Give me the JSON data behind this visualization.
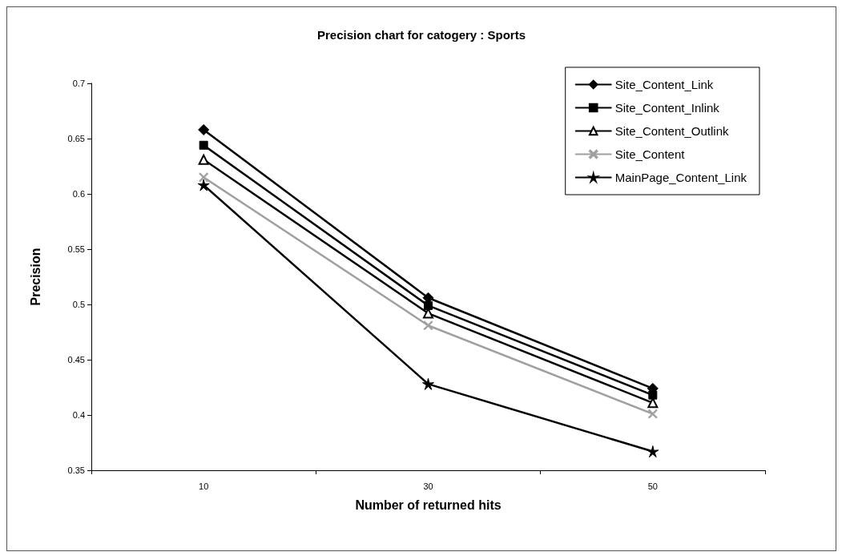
{
  "chart_data": {
    "type": "line",
    "title": "Precision chart for catogery : Sports",
    "xlabel": "Number of returned hits",
    "ylabel": "Precision",
    "categories": [
      "10",
      "30",
      "50"
    ],
    "series": [
      {
        "name": "Site_Content_Link",
        "color": "#000000",
        "marker": "diamond",
        "values": [
          0.658,
          0.506,
          0.424
        ]
      },
      {
        "name": "Site_Content_Inlink",
        "color": "#000000",
        "marker": "square",
        "values": [
          0.644,
          0.499,
          0.418
        ]
      },
      {
        "name": "Site_Content_Outlink",
        "color": "#000000",
        "marker": "triangle",
        "values": [
          0.631,
          0.492,
          0.411
        ]
      },
      {
        "name": "Site_Content",
        "color": "#a0a0a0",
        "marker": "cross",
        "values": [
          0.615,
          0.481,
          0.401
        ]
      },
      {
        "name": "MainPage_Content_Link",
        "color": "#000000",
        "marker": "star",
        "values": [
          0.608,
          0.428,
          0.367
        ]
      }
    ],
    "ylim": [
      0.35,
      0.7
    ],
    "yticks": [
      0.35,
      0.4,
      0.45,
      0.5,
      0.55,
      0.6,
      0.65,
      0.7
    ],
    "grid": false,
    "legend": "top right",
    "line_style": "solid"
  }
}
